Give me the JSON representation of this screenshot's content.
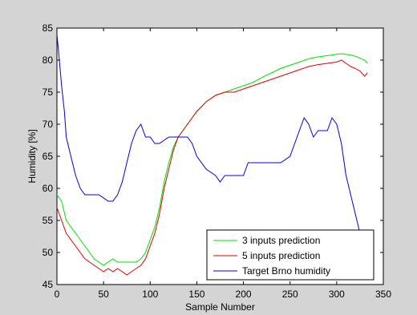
{
  "chart_data": {
    "type": "line",
    "title": "",
    "xlabel": "Sample Number",
    "ylabel": "Humidity [%]",
    "xlim": [
      0,
      350
    ],
    "ylim": [
      45,
      85
    ],
    "xticks": [
      0,
      50,
      100,
      150,
      200,
      250,
      300,
      350
    ],
    "yticks": [
      45,
      50,
      55,
      60,
      65,
      70,
      75,
      80,
      85
    ],
    "grid": false,
    "legend_position": "bottom-right",
    "series": [
      {
        "name": "3 inputs prediction",
        "color": "#00e000",
        "x": [
          0,
          5,
          10,
          15,
          20,
          25,
          30,
          35,
          40,
          45,
          50,
          55,
          60,
          65,
          70,
          75,
          80,
          85,
          90,
          95,
          100,
          105,
          110,
          115,
          120,
          125,
          130,
          135,
          140,
          145,
          150,
          160,
          170,
          180,
          190,
          200,
          210,
          220,
          230,
          240,
          250,
          260,
          270,
          280,
          290,
          300,
          305,
          310,
          315,
          320,
          325,
          330,
          333
        ],
        "values": [
          59,
          58,
          55,
          54,
          53,
          52,
          51,
          50,
          49,
          48.5,
          48,
          48.5,
          49,
          48.5,
          48.5,
          48.5,
          48.5,
          48.5,
          49,
          50,
          52,
          54,
          57,
          61,
          64,
          66.5,
          68,
          69,
          70,
          71,
          72,
          73.5,
          74.5,
          75,
          75.5,
          76,
          76.5,
          77.3,
          78,
          78.7,
          79.2,
          79.7,
          80.2,
          80.5,
          80.7,
          80.9,
          81,
          80.9,
          80.8,
          80.6,
          80.3,
          80,
          79.5
        ]
      },
      {
        "name": "5 inputs prediction",
        "color": "#e00000",
        "x": [
          0,
          5,
          10,
          15,
          20,
          25,
          30,
          35,
          40,
          45,
          50,
          55,
          60,
          65,
          70,
          75,
          80,
          85,
          90,
          95,
          100,
          105,
          110,
          115,
          120,
          125,
          130,
          135,
          140,
          145,
          150,
          160,
          170,
          180,
          190,
          200,
          210,
          220,
          230,
          240,
          250,
          260,
          270,
          280,
          290,
          300,
          305,
          310,
          315,
          320,
          325,
          330,
          333
        ],
        "values": [
          57,
          55,
          53,
          52,
          51,
          50,
          49,
          48.5,
          48,
          47.5,
          47,
          47.5,
          47,
          47.5,
          47,
          46.5,
          47,
          47.5,
          48,
          49,
          51,
          53,
          56,
          60,
          63,
          66,
          68,
          69,
          70,
          71,
          72,
          73.5,
          74.5,
          75,
          75,
          75.5,
          76,
          76.5,
          77,
          77.5,
          78,
          78.5,
          79,
          79.3,
          79.5,
          79.7,
          80,
          79.5,
          79,
          78.7,
          78.3,
          77.5,
          78
        ]
      },
      {
        "name": "Target Brno humidity",
        "color": "#0000e0",
        "x": [
          0,
          2,
          5,
          8,
          10,
          15,
          20,
          25,
          30,
          40,
          45,
          55,
          60,
          65,
          70,
          75,
          80,
          85,
          90,
          95,
          100,
          105,
          110,
          120,
          130,
          140,
          145,
          150,
          160,
          170,
          175,
          180,
          200,
          205,
          220,
          230,
          240,
          250,
          255,
          260,
          265,
          270,
          275,
          280,
          285,
          290,
          295,
          300,
          305,
          310,
          315,
          320,
          325,
          330,
          333
        ],
        "values": [
          84,
          81,
          76,
          72,
          68,
          65,
          62,
          60,
          59,
          59,
          59,
          58,
          58,
          59,
          61,
          64,
          67,
          69,
          70,
          68,
          68,
          67,
          67,
          68,
          68,
          68,
          67,
          65,
          63,
          62,
          61,
          62,
          62,
          64,
          64,
          64,
          64,
          65,
          67,
          69,
          71,
          70,
          68,
          69,
          69,
          69,
          71,
          70,
          67,
          62,
          59,
          56,
          53,
          51,
          50
        ]
      }
    ]
  }
}
